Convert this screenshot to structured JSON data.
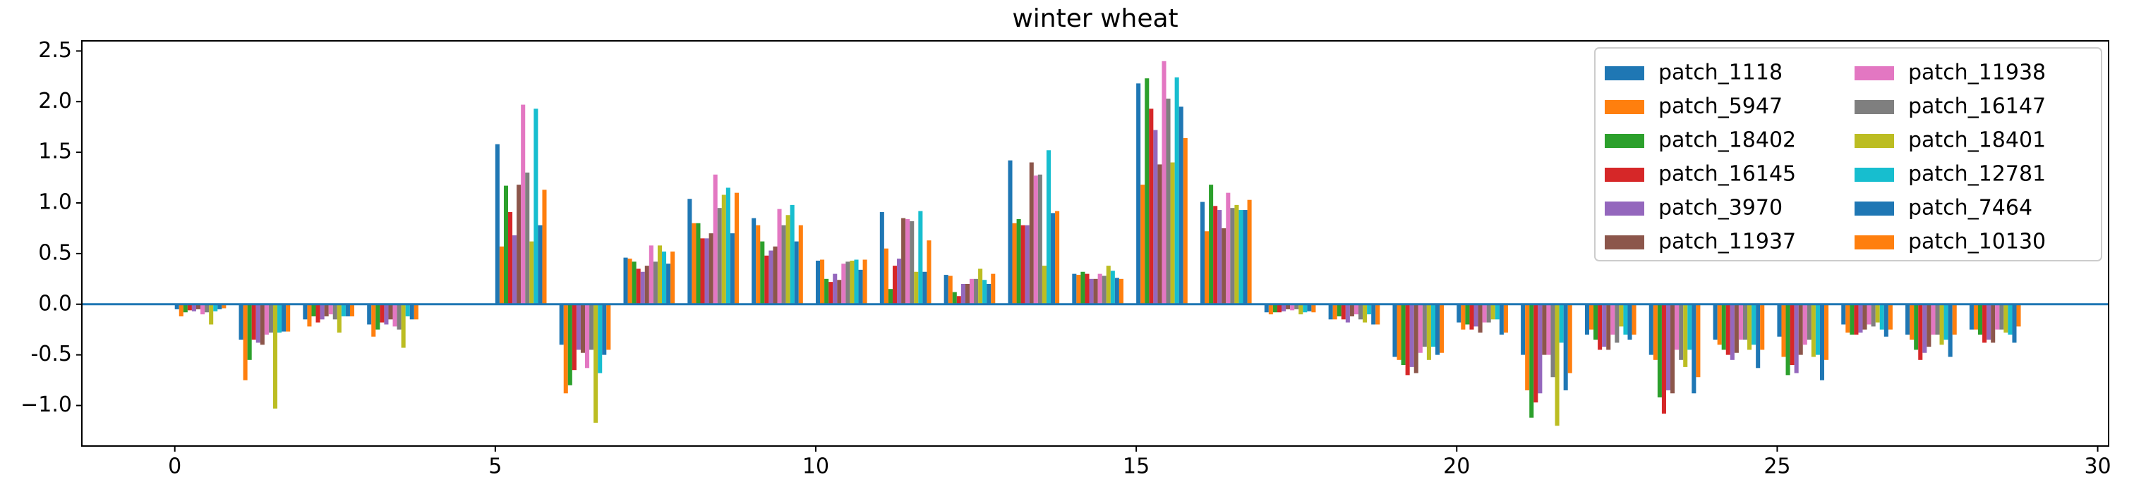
{
  "chart_data": {
    "type": "bar",
    "title": "winter wheat",
    "x": [
      0,
      1,
      2,
      3,
      4,
      5,
      6,
      7,
      8,
      9,
      10,
      11,
      12,
      13,
      14,
      15,
      16,
      17,
      18,
      19,
      20,
      21,
      22,
      23,
      24,
      25,
      26,
      27,
      28
    ],
    "series": [
      {
        "name": "patch_1118",
        "color": "#1f77b4",
        "values": [
          -0.05,
          -0.35,
          -0.15,
          -0.2,
          0,
          1.58,
          -0.4,
          0.46,
          1.04,
          0.85,
          0.43,
          0.91,
          0.29,
          1.42,
          0.3,
          2.18,
          1.01,
          -0.08,
          -0.15,
          -0.52,
          -0.18,
          -0.5,
          -0.3,
          -0.5,
          -0.35,
          -0.32,
          -0.2,
          -0.3,
          -0.25
        ]
      },
      {
        "name": "patch_5947",
        "color": "#ff7f0e",
        "values": [
          -0.12,
          -0.75,
          -0.22,
          -0.32,
          0,
          0.57,
          -0.88,
          0.45,
          0.8,
          0.78,
          0.44,
          0.55,
          0.28,
          0.8,
          0.29,
          1.18,
          0.72,
          -0.1,
          -0.15,
          -0.55,
          -0.25,
          -0.85,
          -0.25,
          -0.55,
          -0.4,
          -0.52,
          -0.28,
          -0.35,
          -0.25
        ]
      },
      {
        "name": "patch_18402",
        "color": "#2ca02c",
        "values": [
          -0.08,
          -0.55,
          -0.12,
          -0.25,
          0,
          1.17,
          -0.8,
          0.42,
          0.8,
          0.62,
          0.25,
          0.15,
          0.12,
          0.84,
          0.32,
          2.23,
          1.18,
          -0.08,
          -0.12,
          -0.6,
          -0.2,
          -1.12,
          -0.35,
          -0.92,
          -0.45,
          -0.7,
          -0.3,
          -0.45,
          -0.3
        ]
      },
      {
        "name": "patch_16145",
        "color": "#d62728",
        "values": [
          -0.06,
          -0.35,
          -0.18,
          -0.18,
          0,
          0.91,
          -0.65,
          0.35,
          0.65,
          0.48,
          0.22,
          0.38,
          0.08,
          0.78,
          0.3,
          1.93,
          0.97,
          -0.08,
          -0.15,
          -0.7,
          -0.25,
          -0.97,
          -0.45,
          -1.08,
          -0.5,
          -0.6,
          -0.3,
          -0.55,
          -0.38
        ]
      },
      {
        "name": "patch_3970",
        "color": "#9467bd",
        "values": [
          -0.07,
          -0.38,
          -0.15,
          -0.2,
          0,
          0.68,
          -0.45,
          0.32,
          0.65,
          0.53,
          0.3,
          0.45,
          0.2,
          0.78,
          0.25,
          1.72,
          0.93,
          -0.07,
          -0.18,
          -0.62,
          -0.22,
          -0.88,
          -0.42,
          -0.85,
          -0.55,
          -0.68,
          -0.28,
          -0.48,
          -0.35
        ]
      },
      {
        "name": "patch_11937",
        "color": "#8c564b",
        "values": [
          -0.05,
          -0.4,
          -0.12,
          -0.15,
          0,
          1.18,
          -0.48,
          0.38,
          0.7,
          0.57,
          0.24,
          0.85,
          0.2,
          1.4,
          0.25,
          1.38,
          0.75,
          -0.05,
          -0.12,
          -0.68,
          -0.28,
          -0.5,
          -0.45,
          -0.88,
          -0.48,
          -0.5,
          -0.25,
          -0.42,
          -0.38
        ]
      },
      {
        "name": "patch_11938",
        "color": "#e377c2",
        "values": [
          -0.1,
          -0.3,
          -0.1,
          -0.22,
          0,
          1.97,
          -0.63,
          0.58,
          1.28,
          0.94,
          0.4,
          0.84,
          0.25,
          1.27,
          0.3,
          2.4,
          1.1,
          -0.06,
          -0.1,
          -0.48,
          -0.18,
          -0.5,
          -0.3,
          -0.45,
          -0.35,
          -0.4,
          -0.2,
          -0.3,
          -0.25
        ]
      },
      {
        "name": "patch_16147",
        "color": "#7f7f7f",
        "values": [
          -0.08,
          -0.28,
          -0.15,
          -0.25,
          0,
          1.3,
          -0.45,
          0.42,
          0.95,
          0.78,
          0.42,
          0.82,
          0.25,
          1.28,
          0.28,
          2.03,
          0.95,
          -0.05,
          -0.15,
          -0.42,
          -0.18,
          -0.72,
          -0.38,
          -0.55,
          -0.35,
          -0.35,
          -0.22,
          -0.3,
          -0.25
        ]
      },
      {
        "name": "patch_18401",
        "color": "#bcbd22",
        "values": [
          -0.2,
          -1.03,
          -0.28,
          -0.43,
          0,
          0.62,
          -1.17,
          0.58,
          1.08,
          0.88,
          0.43,
          0.32,
          0.35,
          0.38,
          0.38,
          1.4,
          0.98,
          -0.1,
          -0.18,
          -0.55,
          -0.15,
          -1.2,
          -0.22,
          -0.62,
          -0.45,
          -0.52,
          -0.18,
          -0.4,
          -0.28
        ]
      },
      {
        "name": "patch_12781",
        "color": "#17becf",
        "values": [
          -0.07,
          -0.28,
          -0.12,
          -0.12,
          0,
          1.93,
          -0.68,
          0.52,
          1.15,
          0.98,
          0.44,
          0.92,
          0.24,
          1.52,
          0.33,
          2.24,
          0.93,
          -0.08,
          -0.1,
          -0.42,
          -0.15,
          -0.38,
          -0.3,
          -0.45,
          -0.4,
          -0.5,
          -0.25,
          -0.35,
          -0.3
        ]
      },
      {
        "name": "patch_7464",
        "color": "#1f77b4",
        "values": [
          -0.05,
          -0.27,
          -0.12,
          -0.15,
          0,
          0.78,
          -0.5,
          0.4,
          0.7,
          0.62,
          0.34,
          0.32,
          0.2,
          0.9,
          0.26,
          1.95,
          0.93,
          -0.07,
          -0.2,
          -0.5,
          -0.3,
          -0.85,
          -0.35,
          -0.88,
          -0.63,
          -0.75,
          -0.32,
          -0.52,
          -0.38
        ]
      },
      {
        "name": "patch_10130",
        "color": "#ff7f0e",
        "values": [
          -0.04,
          -0.27,
          -0.12,
          -0.15,
          0,
          1.13,
          -0.45,
          0.52,
          1.1,
          0.78,
          0.44,
          0.63,
          0.3,
          0.92,
          0.25,
          1.64,
          1.03,
          -0.08,
          -0.2,
          -0.48,
          -0.28,
          -0.68,
          -0.3,
          -0.72,
          -0.45,
          -0.55,
          -0.25,
          -0.3,
          -0.22
        ]
      }
    ],
    "xlim": [
      -1.45,
      30.17
    ],
    "ylim": [
      -1.4,
      2.6
    ],
    "xticks": [
      0,
      5,
      10,
      15,
      20,
      25,
      30
    ],
    "yticks": [
      {
        "value": -1,
        "label": "−1.0"
      },
      -0.5,
      {
        "value": 0,
        "label": "0.0"
      },
      0.5,
      {
        "value": 1,
        "label": "1.0"
      },
      1.5,
      {
        "value": 2,
        "label": "2.0"
      },
      2.5
    ],
    "axhline": {
      "y": 0,
      "color": "#1f77b4"
    },
    "legend": "upper right",
    "legend_columns": 2
  }
}
